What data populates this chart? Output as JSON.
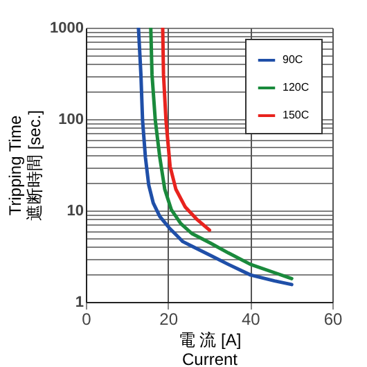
{
  "chart_data": {
    "type": "line",
    "xlabel": "電 流 [A]\nCurrent",
    "ylabel": "Tripping Time\n遮断時間 [sec.]",
    "xlim": [
      0,
      60
    ],
    "xticks": [
      0,
      20,
      40,
      60
    ],
    "ylim": [
      1,
      1000
    ],
    "log": true,
    "yticks": [
      1,
      {
        "value": 2,
        "label": null
      },
      {
        "value": 3,
        "label": null
      },
      {
        "value": 4,
        "label": null
      },
      {
        "value": 5,
        "label": null
      },
      {
        "value": 6,
        "label": null
      },
      {
        "value": 7,
        "label": null
      },
      {
        "value": 8,
        "label": null
      },
      {
        "value": 9,
        "label": null
      },
      10,
      {
        "value": 20,
        "label": null
      },
      {
        "value": 30,
        "label": null
      },
      {
        "value": 40,
        "label": null
      },
      {
        "value": 50,
        "label": null
      },
      {
        "value": 60,
        "label": null
      },
      {
        "value": 70,
        "label": null
      },
      {
        "value": 80,
        "label": null
      },
      {
        "value": 90,
        "label": null
      },
      100,
      {
        "value": 200,
        "label": null
      },
      {
        "value": 300,
        "label": null
      },
      {
        "value": 400,
        "label": null
      },
      {
        "value": 500,
        "label": null
      },
      {
        "value": 600,
        "label": null
      },
      {
        "value": 700,
        "label": null
      },
      {
        "value": 800,
        "label": null
      },
      {
        "value": 900,
        "label": null
      },
      1000
    ],
    "grid": true,
    "legend": "top right",
    "marker": "none",
    "line_style": "solid",
    "series": [
      {
        "name": "90C",
        "color": "#1f4fa8",
        "x": [
          12.8,
          13.4,
          13.8,
          14.5,
          15.3,
          16.4,
          18.0,
          20.3,
          23.6,
          25.8,
          30.3,
          34.7,
          40.1,
          45.9,
          50.1
        ],
        "values": [
          1000,
          306,
          97,
          38,
          19,
          12.1,
          8.6,
          6.45,
          4.57,
          4.07,
          3.23,
          2.57,
          1.97,
          1.7,
          1.55
        ]
      },
      {
        "name": "120C",
        "color": "#1a8a3c",
        "x": [
          15.8,
          16.1,
          16.9,
          18.0,
          19.2,
          20.8,
          23.1,
          25.8,
          30.3,
          34.7,
          40.1,
          45.9,
          50.1
        ],
        "values": [
          1000,
          306,
          97,
          38,
          17.1,
          10.2,
          7.2,
          5.6,
          4.4,
          3.43,
          2.57,
          2.09,
          1.8
        ]
      },
      {
        "name": "150C",
        "color": "#e8231e",
        "x": [
          18.7,
          18.9,
          19.5,
          20.5,
          21.9,
          24.2,
          26.9,
          30.1
        ],
        "values": [
          1000,
          306,
          97,
          30.4,
          17.1,
          10.9,
          8.1,
          6.1
        ]
      }
    ]
  }
}
